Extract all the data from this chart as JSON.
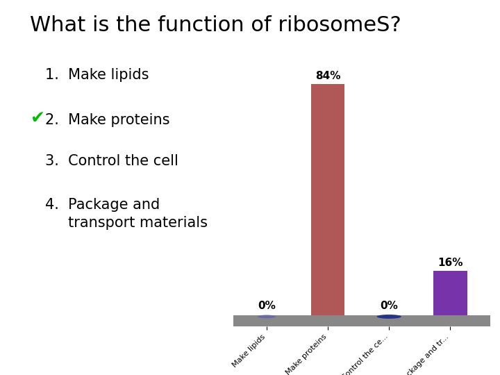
{
  "title": "What is the function of ribosomeS?",
  "categories": [
    "Make lipids",
    "Make proteins",
    "Control the ce...",
    "Package and tr..."
  ],
  "values": [
    0,
    84,
    0,
    16
  ],
  "bar_colors": [
    "#888899",
    "#b05858",
    "#334466",
    "#7733aa"
  ],
  "ellipse_colors": [
    "#6666aa",
    "#6666aa",
    "#1a2a88",
    "#5522aa"
  ],
  "value_labels": [
    "0%",
    "84%",
    "0%",
    "16%"
  ],
  "background_color": "#ffffff",
  "title_fontsize": 22,
  "label_fontsize": 8,
  "list_fontsize": 15,
  "checkmark_color": "#00bb00",
  "base_color": "#888888"
}
